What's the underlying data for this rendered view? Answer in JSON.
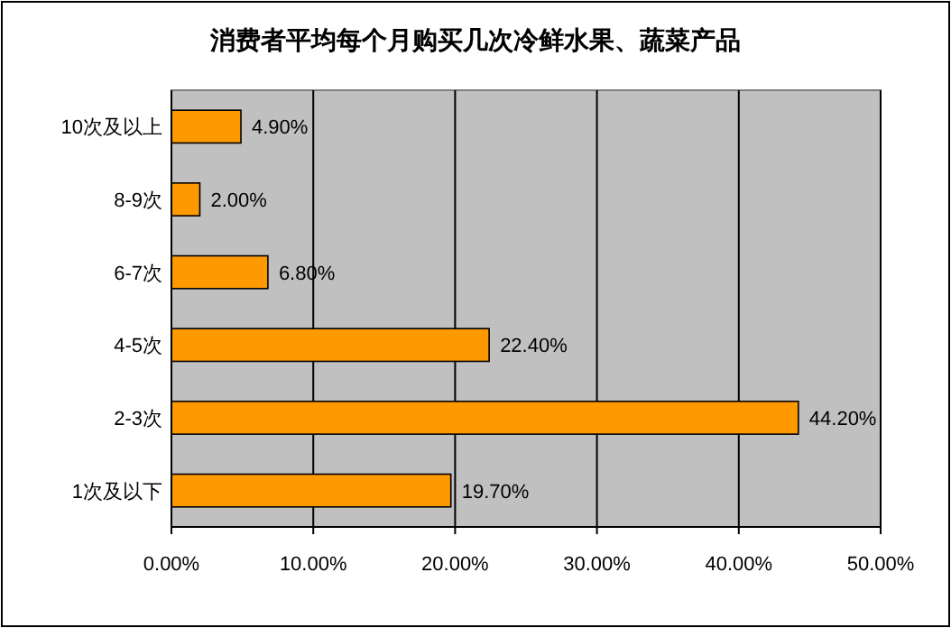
{
  "chart_data": {
    "type": "bar",
    "orientation": "horizontal",
    "title": "消费者平均每个月购买几次冷鲜水果、蔬菜产品",
    "categories": [
      "10次及以上",
      "8-9次",
      "6-7次",
      "4-5次",
      "2-3次",
      "1次及以下"
    ],
    "values": [
      4.9,
      2.0,
      6.8,
      22.4,
      44.2,
      19.7
    ],
    "value_labels": [
      "4.90%",
      "2.00%",
      "6.80%",
      "22.40%",
      "44.20%",
      "19.70%"
    ],
    "color": "#ff9900",
    "xlim": [
      0,
      50
    ],
    "xticks": [
      {
        "value": 0,
        "label": "0.00%"
      },
      {
        "value": 10,
        "label": "10.00%"
      },
      {
        "value": 20,
        "label": "20.00%"
      },
      {
        "value": 30,
        "label": "30.00%"
      },
      {
        "value": 40,
        "label": "40.00%"
      },
      {
        "value": 50,
        "label": "50.00%"
      }
    ],
    "grid": "x"
  }
}
